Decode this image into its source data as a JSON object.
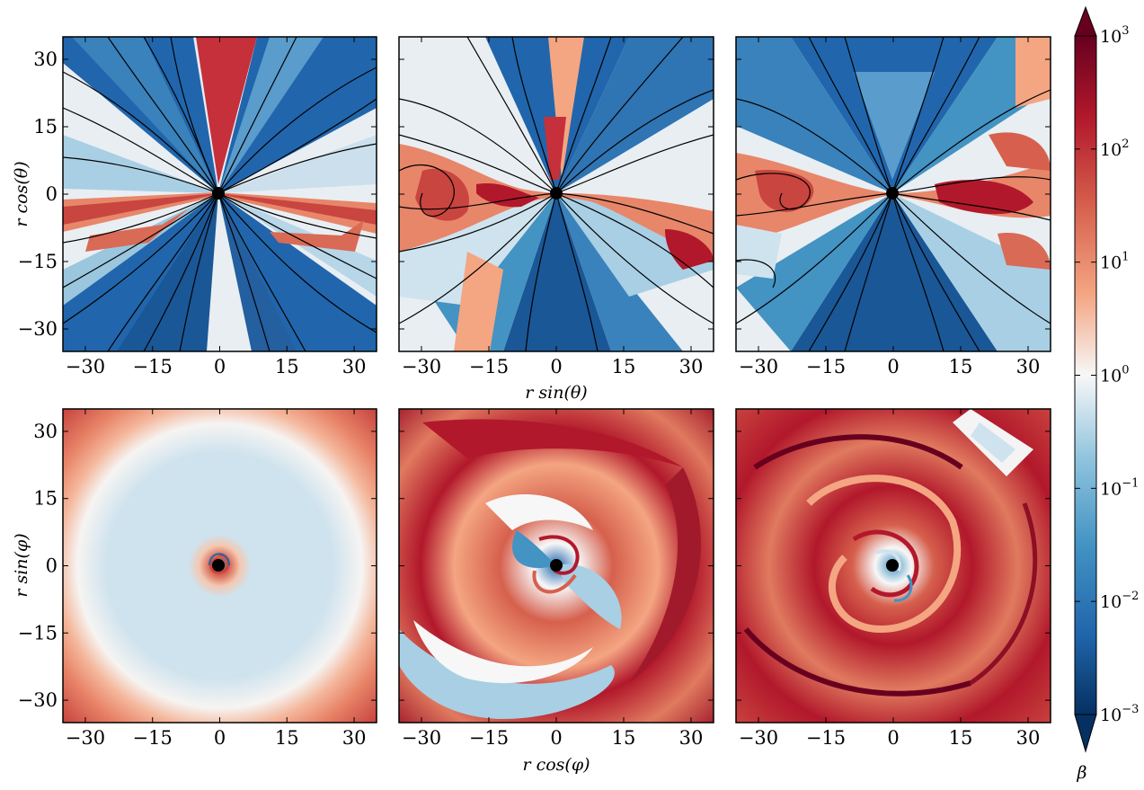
{
  "chart_data": [
    {
      "type": "heatmap",
      "panel": "top-left",
      "xlabel": "",
      "ylabel": "r cos(θ)",
      "xlim": [
        -35,
        35
      ],
      "ylim": [
        -35,
        35
      ],
      "xticks": [
        "−30",
        "−15",
        "0",
        "15",
        "30"
      ],
      "yticks": [
        "−30",
        "−15",
        "0",
        "15",
        "30"
      ],
      "overlay": "magnetic field streamlines",
      "structure": "poloidal slice: strongly magnetized (β < 1) polar funnels above and below, β > 1 equatorial band, central black hole"
    },
    {
      "type": "heatmap",
      "panel": "top-center",
      "xlabel": "r sin(θ)",
      "ylabel": "",
      "xlim": [
        -35,
        35
      ],
      "ylim": [
        -35,
        35
      ],
      "xticks": [
        "−30",
        "−15",
        "0",
        "15",
        "30"
      ],
      "yticks": [],
      "overlay": "magnetic field streamlines",
      "structure": "poloidal slice: polar funnels with β < 1, turbulent β > 1 disk with vortices"
    },
    {
      "type": "heatmap",
      "panel": "top-right",
      "xlabel": "",
      "ylabel": "",
      "xlim": [
        -35,
        35
      ],
      "ylim": [
        -35,
        35
      ],
      "xticks": [
        "−30",
        "−15",
        "0",
        "15",
        "30"
      ],
      "yticks": [],
      "overlay": "magnetic field streamlines",
      "structure": "poloidal slice: wide β < 1 funnels, thin turbulent β > 1 equatorial disk"
    },
    {
      "type": "heatmap",
      "panel": "bottom-left",
      "xlabel": "",
      "ylabel": "r sin(φ)",
      "xlim": [
        -35,
        35
      ],
      "ylim": [
        -35,
        35
      ],
      "xticks": [
        "−30",
        "−15",
        "0",
        "15",
        "30"
      ],
      "yticks": [
        "−30",
        "−15",
        "0",
        "15",
        "30"
      ],
      "structure": "equatorial slice: axisymmetric rings, β ≈ 0.3–1 interior, β > 1 outer rim, small spiral near center"
    },
    {
      "type": "heatmap",
      "panel": "bottom-center",
      "xlabel": "r cos(φ)",
      "ylabel": "",
      "xlim": [
        -35,
        35
      ],
      "ylim": [
        -35,
        35
      ],
      "xticks": [
        "−30",
        "−15",
        "0",
        "15",
        "30"
      ],
      "yticks": [],
      "structure": "equatorial slice: developing two-arm spiral, β > 1 arms with β < 1 inter-arm regions"
    },
    {
      "type": "heatmap",
      "panel": "bottom-right",
      "xlabel": "",
      "ylabel": "",
      "xlim": [
        -35,
        35
      ],
      "ylim": [
        -35,
        35
      ],
      "xticks": [
        "−30",
        "−15",
        "0",
        "15",
        "30"
      ],
      "yticks": [],
      "structure": "equatorial slice: fully turbulent multi-arm spirals, predominantly β > 1"
    }
  ],
  "colorbar": {
    "label": "β",
    "scale": "log",
    "range": [
      0.001,
      1000
    ],
    "tick_base": "10",
    "tick_exponents": [
      "3",
      "2",
      "1",
      "0",
      "−1",
      "−2",
      "−3"
    ],
    "extend": "both",
    "colormap": "RdBu_r",
    "colors": [
      "#053061",
      "#2166ac",
      "#4393c3",
      "#92c5de",
      "#f7f7f7",
      "#f4a582",
      "#d6604d",
      "#b2182b",
      "#67001f"
    ]
  }
}
